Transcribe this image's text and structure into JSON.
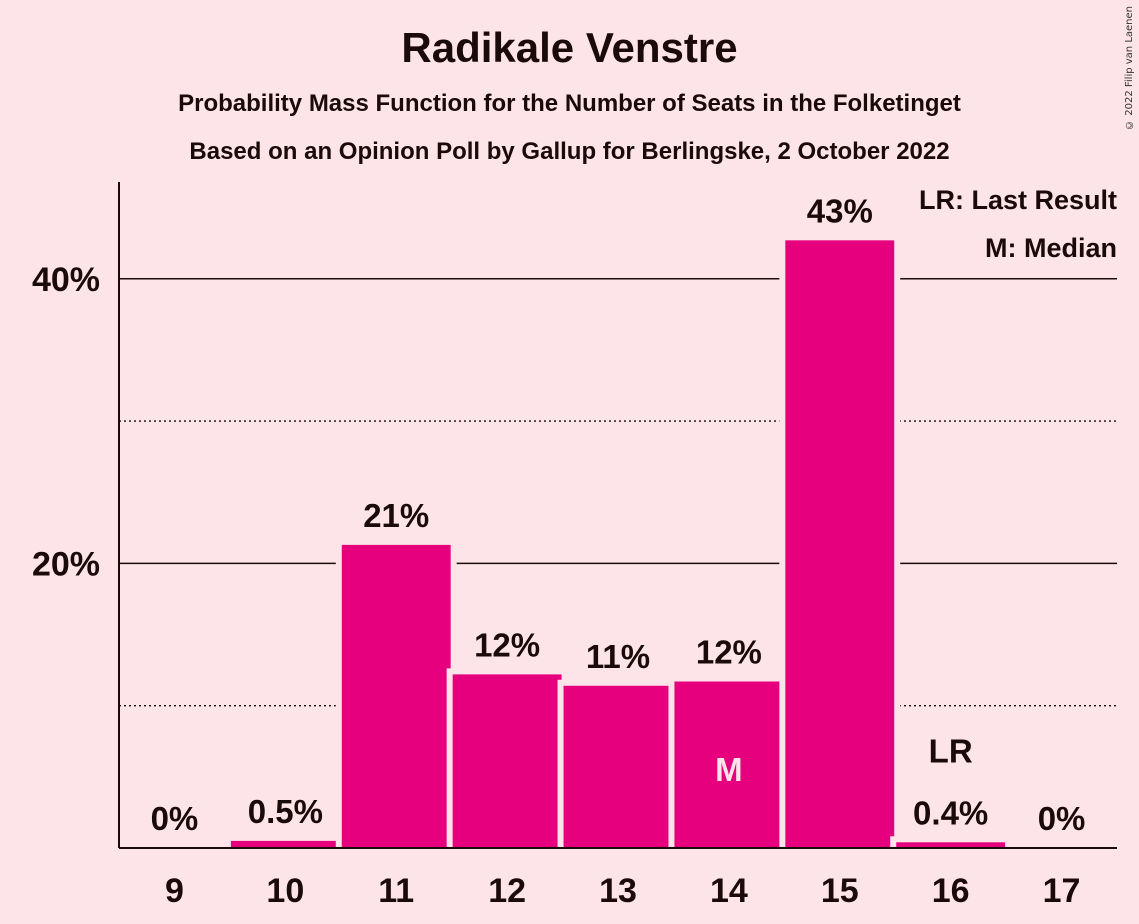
{
  "title": "Radikale Venstre",
  "subtitle1": "Probability Mass Function for the Number of Seats in the Folketinget",
  "subtitle2": "Based on an Opinion Poll by Gallup for Berlingske, 2 October 2022",
  "copyright": "© 2022 Filip van Laenen",
  "legend": {
    "last_result": "LR: Last Result",
    "median": "M: Median"
  },
  "colors": {
    "bar": "#E6007E",
    "background": "#FDE4E8",
    "text": "#1a0a0a"
  },
  "chart_data": {
    "type": "bar",
    "categories": [
      "9",
      "10",
      "11",
      "12",
      "13",
      "14",
      "15",
      "16",
      "17"
    ],
    "values": [
      0,
      0.5,
      21.3,
      12.2,
      11.4,
      11.7,
      42.7,
      0.4,
      0
    ],
    "value_labels": [
      "0%",
      "0.5%",
      "21%",
      "12%",
      "11%",
      "12%",
      "43%",
      "0.4%",
      "0%"
    ],
    "yticks": [
      {
        "value": 20,
        "label": "20%"
      },
      {
        "value": 40,
        "label": "40%"
      }
    ],
    "minor_gridlines": [
      10,
      30
    ],
    "ylim": [
      0,
      46.8
    ],
    "median_category": "14",
    "median_marker": "M",
    "last_result_category": "16",
    "last_result_marker": "LR",
    "legend_position": "top-right"
  }
}
